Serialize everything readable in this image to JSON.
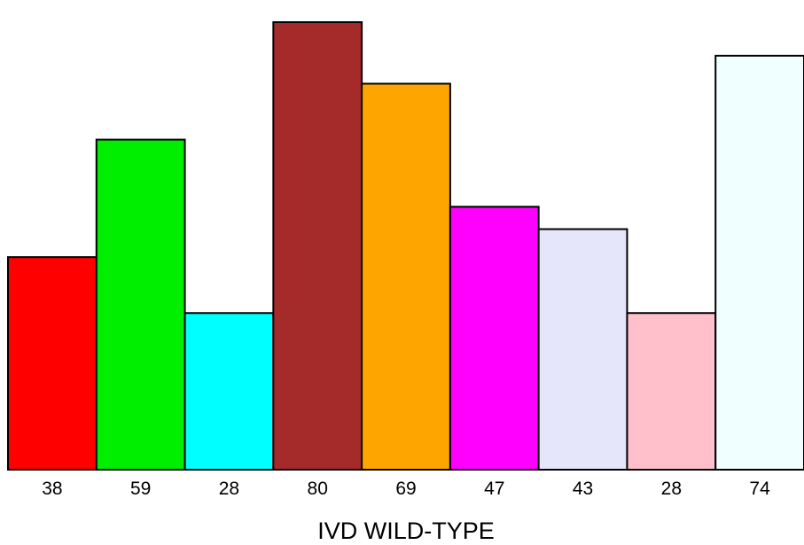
{
  "chart_data": {
    "type": "bar",
    "categories": [
      "38",
      "59",
      "28",
      "80",
      "69",
      "47",
      "43",
      "28",
      "74"
    ],
    "values": [
      38,
      59,
      28,
      80,
      69,
      47,
      43,
      28,
      74
    ],
    "colors": [
      "#ff0000",
      "#00ee00",
      "#00ffff",
      "#a52a2a",
      "#ffa500",
      "#ff00ff",
      "#e6e6fa",
      "#ffc0cb",
      "#f0ffff"
    ],
    "title": "",
    "xlabel": "IVD WILD-TYPE",
    "ylabel": "",
    "ylim": [
      0,
      80
    ],
    "grid": false,
    "legend": "none"
  }
}
